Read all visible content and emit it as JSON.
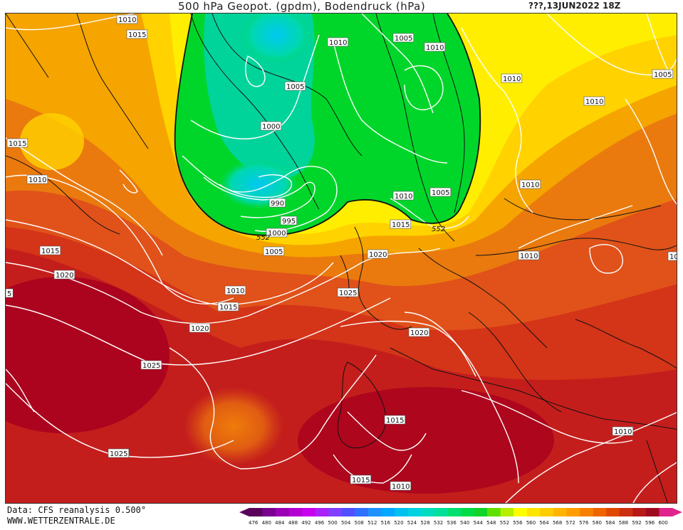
{
  "header": {
    "title": "500 hPa Geopot. (gpdm), Bodendruck (hPa)",
    "datetime": "???,13JUN2022 18Z"
  },
  "footer": {
    "data_source": "Data: CFS reanalysis 0.500°",
    "website": "WWW.WETTERZENTRALE.DE"
  },
  "colors": {
    "deep_red": "#a5001e",
    "red": "#c8201c",
    "orange_red": "#dc4a14",
    "orange": "#ea7a0c",
    "light_orange": "#f5a800",
    "yellow": "#ffd600",
    "light_yellow": "#ffec00",
    "green": "#00d62a",
    "teal": "#00c8a0",
    "cyan": "#00c8e8",
    "isobar": "#ffffff",
    "coastline": "#111111"
  },
  "color_scale": {
    "ticks": [
      "476",
      "480",
      "484",
      "488",
      "492",
      "496",
      "500",
      "504",
      "508",
      "512",
      "516",
      "520",
      "524",
      "528",
      "532",
      "536",
      "540",
      "544",
      "548",
      "552",
      "556",
      "560",
      "564",
      "568",
      "572",
      "576",
      "580",
      "584",
      "588",
      "592",
      "596",
      "600"
    ],
    "colors": [
      "#5a005a",
      "#7a0090",
      "#9a00b4",
      "#b400d2",
      "#c800f0",
      "#aa22f5",
      "#8040ff",
      "#5050ff",
      "#3070ff",
      "#1e90ff",
      "#00a8ff",
      "#00c0f0",
      "#00d2e0",
      "#00dcc0",
      "#00e09a",
      "#00e070",
      "#00dc46",
      "#10d428",
      "#60e000",
      "#b4f000",
      "#ffff00",
      "#ffe400",
      "#ffcc00",
      "#ffb400",
      "#ff9c00",
      "#f88000",
      "#f06400",
      "#e04800",
      "#cc3010",
      "#b81818",
      "#a00a1e",
      "#e0248c"
    ]
  },
  "isobar_labels": [
    {
      "text": "1010"
    },
    {
      "text": "1015"
    },
    {
      "text": "1015"
    },
    {
      "text": "1010"
    },
    {
      "text": "1015"
    },
    {
      "text": "1020"
    },
    {
      "text": "1010"
    },
    {
      "text": "1005"
    },
    {
      "text": "1010"
    },
    {
      "text": "1005"
    },
    {
      "text": "1010"
    },
    {
      "text": "1010"
    },
    {
      "text": "1005"
    },
    {
      "text": "1000"
    },
    {
      "text": "990"
    },
    {
      "text": "995"
    },
    {
      "text": "1000"
    },
    {
      "text": "1005"
    },
    {
      "text": "1010"
    },
    {
      "text": "1015"
    },
    {
      "text": "1010"
    },
    {
      "text": "1005"
    },
    {
      "text": "1010"
    },
    {
      "text": "1020"
    },
    {
      "text": "1025"
    },
    {
      "text": "1015"
    },
    {
      "text": "1020"
    },
    {
      "text": "1025"
    },
    {
      "text": "1020"
    },
    {
      "text": "1025"
    },
    {
      "text": "1015"
    },
    {
      "text": "1015"
    },
    {
      "text": "1010"
    },
    {
      "text": "1010"
    },
    {
      "text": "1010"
    },
    {
      "text": "10"
    },
    {
      "text": "5"
    }
  ],
  "contour_labels": [
    {
      "text": "552"
    },
    {
      "text": "552"
    }
  ]
}
